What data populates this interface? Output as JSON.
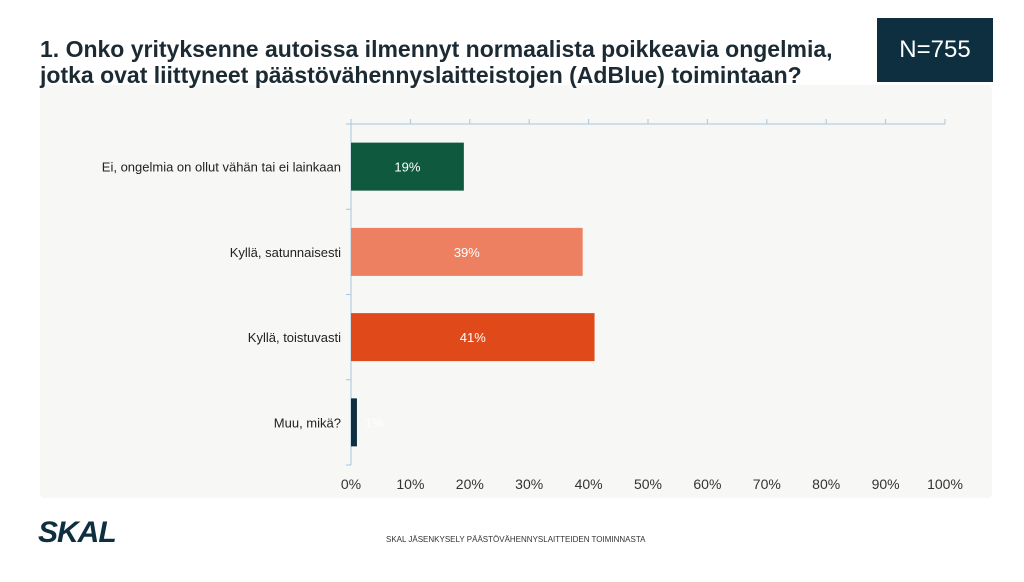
{
  "header": {
    "title": "1. Onko yrityksenne autoissa ilmennyt normaalista poikkeavia ongelmia, jotka ovat liittyneet päästövähennyslaitteistojen (AdBlue) toimintaan?",
    "n_label": "N=755"
  },
  "footer": {
    "logo": "SKAL",
    "text": "SKAL JÄSENKYSELY PÄÄSTÖVÄHENNYSLAITTEIDEN TOIMINNASTA"
  },
  "chart_data": {
    "type": "bar",
    "orientation": "horizontal",
    "categories": [
      "Ei, ongelmia on ollut vähän tai ei lainkaan",
      "Kyllä, satunnaisesti",
      "Kyllä, toistuvasti",
      "Muu, mikä?"
    ],
    "values": [
      19,
      39,
      41,
      1
    ],
    "data_labels": [
      "19%",
      "39%",
      "41%",
      "1%"
    ],
    "colors": [
      "#0f5a3e",
      "#ec8060",
      "#e04a1a",
      "#0e2f3f"
    ],
    "xlim": [
      0,
      100
    ],
    "xticks": [
      "0%",
      "10%",
      "20%",
      "30%",
      "40%",
      "50%",
      "60%",
      "70%",
      "80%",
      "90%",
      "100%"
    ],
    "grid": false
  }
}
